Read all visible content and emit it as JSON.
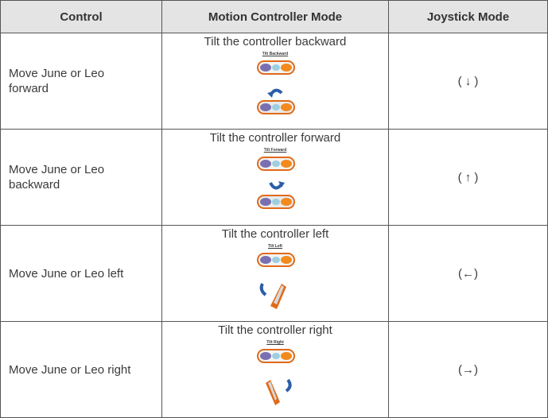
{
  "table": {
    "header": [
      "Control",
      "Motion Controller Mode",
      "Joystick Mode"
    ],
    "rows": [
      {
        "control": "Move June or Leo forward",
        "motion": "Tilt the controller backward",
        "image_caption": "Tilt Backward",
        "joystick": "( ↓ )"
      },
      {
        "control": "Move June or Leo backward",
        "motion": "Tilt the controller forward",
        "image_caption": "Tilt Forward",
        "joystick": "( ↑ )"
      },
      {
        "control": "Move June or Leo left",
        "motion": "Tilt the controller left",
        "image_caption": "Tilt Left",
        "joystick": "(←)"
      },
      {
        "control": "Move June or Leo right",
        "motion": "Tilt the controller right",
        "image_caption": "Tilt Right",
        "joystick": "(→)"
      }
    ]
  }
}
